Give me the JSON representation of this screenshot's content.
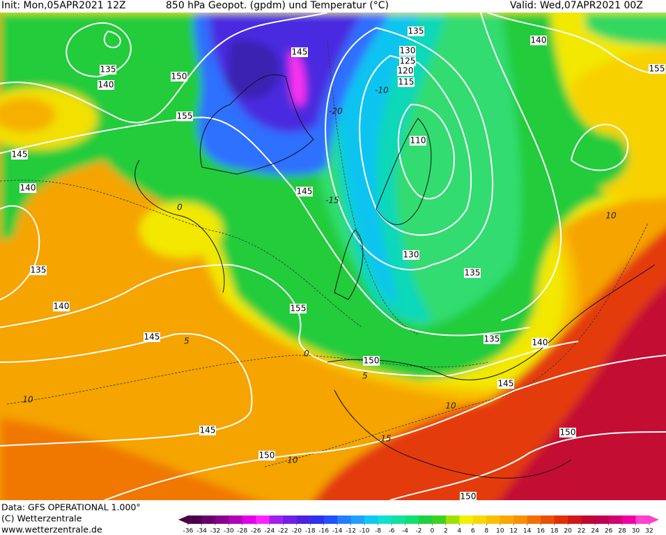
{
  "header": {
    "init": "Init: Mon,05APR2021 12Z",
    "title": "850 hPa Geopot. (gpdm) und Temperatur (°C)",
    "valid": "Valid: Wed,07APR2021 00Z"
  },
  "contour_labels": [
    135,
    140,
    155,
    145,
    130,
    125,
    120,
    115,
    135,
    140,
    150,
    155,
    110,
    145,
    140,
    145,
    130,
    135,
    135,
    140,
    155,
    145,
    135,
    140,
    150,
    145,
    145,
    150,
    150,
    150
  ],
  "temperature_labels": [
    -20,
    -15,
    -10,
    0,
    5,
    5,
    10,
    10,
    15,
    10,
    10,
    0
  ],
  "footer": {
    "data": "Data: GFS OPERATIONAL 1.000°",
    "copyright": "(C) Wetterzentrale",
    "url": "www.wetterzentrale.de"
  },
  "colorbar": {
    "ticks": [
      -36,
      -34,
      -32,
      -30,
      -28,
      -26,
      -24,
      -22,
      -20,
      -18,
      -16,
      -14,
      -12,
      -10,
      -8,
      -6,
      -4,
      -2,
      0,
      2,
      4,
      6,
      8,
      10,
      12,
      14,
      16,
      18,
      20,
      22,
      24,
      26,
      28,
      30,
      32
    ],
    "colors": [
      "#4a0048",
      "#6a0070",
      "#8a0090",
      "#b000b8",
      "#e000e8",
      "#ff20ff",
      "#a020f0",
      "#7020e8",
      "#5020e0",
      "#3030f0",
      "#2050ff",
      "#2080ff",
      "#20a0ff",
      "#10c8f0",
      "#10e0d0",
      "#10e0a0",
      "#10e070",
      "#20d040",
      "#40d020",
      "#a0e000",
      "#f0f000",
      "#f8d800",
      "#f8c000",
      "#f8a800",
      "#f89000",
      "#f07000",
      "#e85000",
      "#e03000",
      "#d01818",
      "#c00830",
      "#c00050",
      "#d00070",
      "#f000a0",
      "#ff40d0"
    ]
  }
}
